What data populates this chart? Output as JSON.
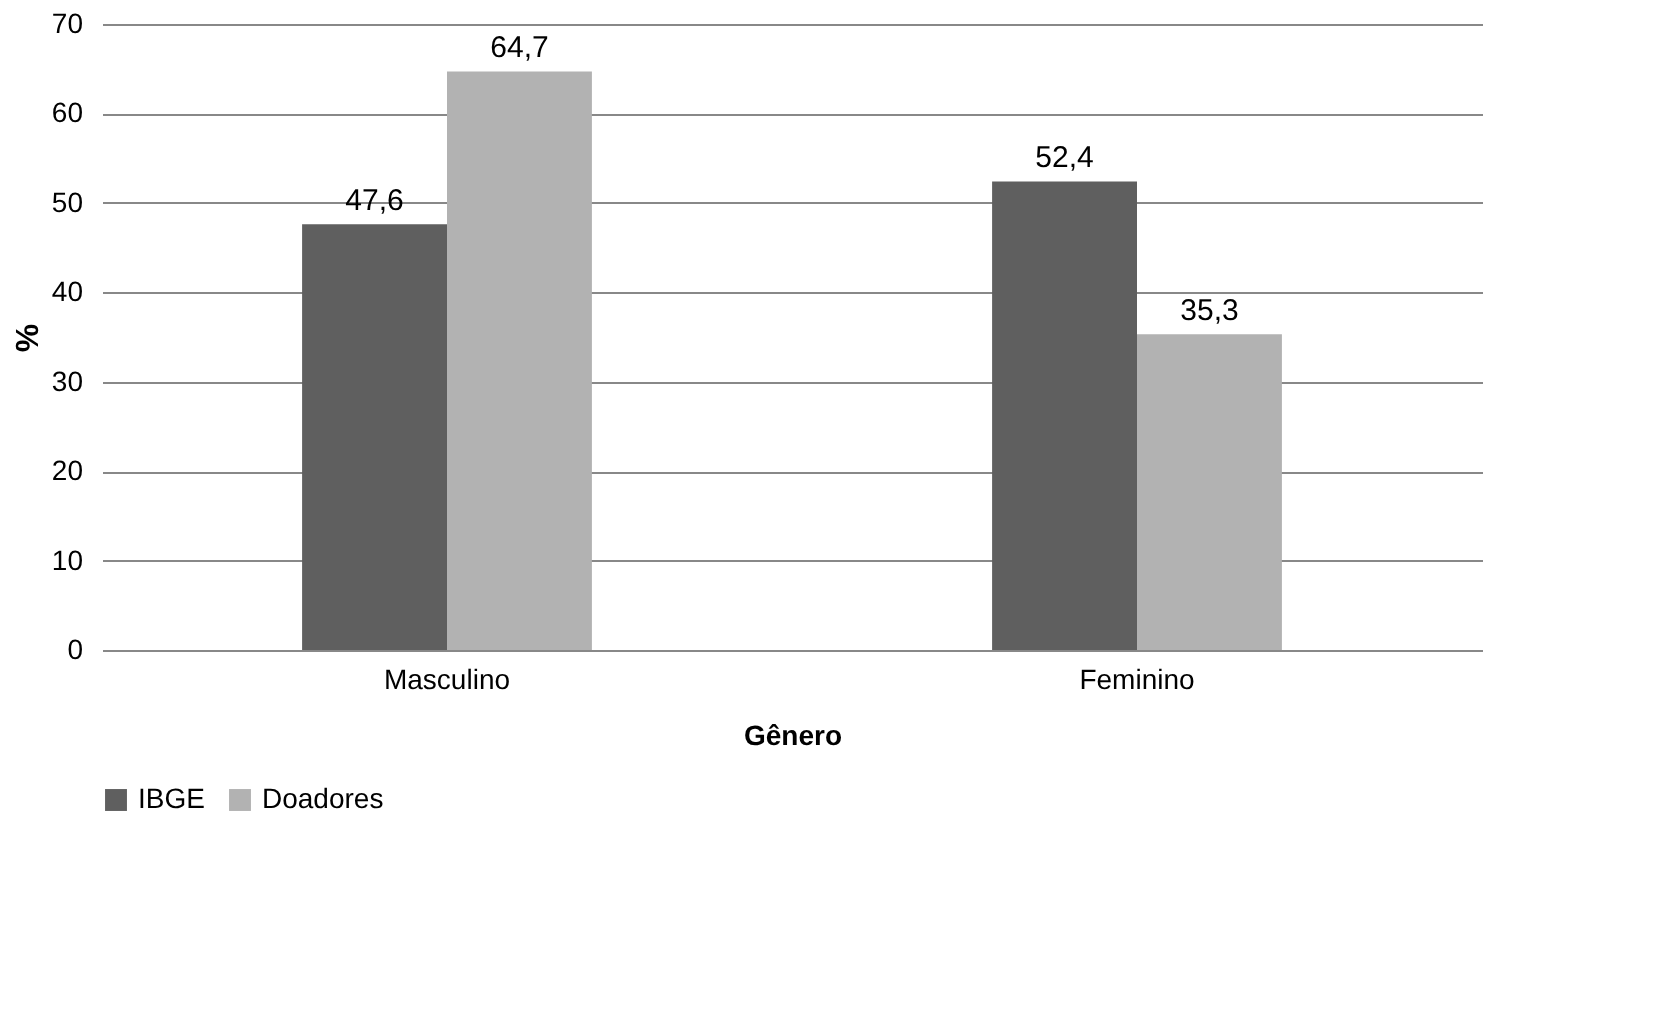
{
  "chart_data": {
    "type": "bar",
    "xlabel": "Gênero",
    "ylabel": "%",
    "categories": [
      "Masculino",
      "Feminino"
    ],
    "series": [
      {
        "name": "IBGE",
        "color": "#5f5f5f",
        "values": [
          47.6,
          52.4
        ],
        "value_labels": [
          "47,6",
          "52,4"
        ]
      },
      {
        "name": "Doadores",
        "color": "#b2b2b2",
        "values": [
          64.7,
          35.3
        ],
        "value_labels": [
          "64,7",
          "35,3"
        ]
      }
    ],
    "ylim": [
      0,
      70
    ],
    "yticks": [
      0,
      10,
      20,
      30,
      40,
      50,
      60,
      70
    ],
    "grid": "y",
    "legend": "bottom"
  }
}
